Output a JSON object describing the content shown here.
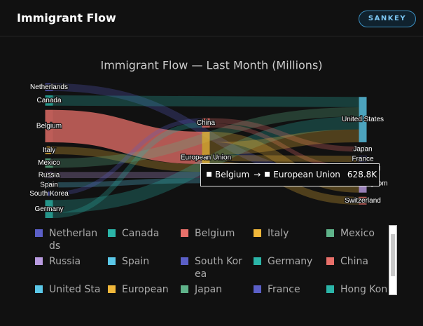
{
  "header": {
    "title": "Immigrant Flow",
    "badge": "SANKEY"
  },
  "chart_data": {
    "type": "sankey",
    "title": "Immigrant Flow — Last Month (Millions)",
    "nodes": [
      {
        "name": "Netherlands",
        "color": "#5b5fc7"
      },
      {
        "name": "Canada",
        "color": "#2bb5a8"
      },
      {
        "name": "Belgium",
        "color": "#e8706a"
      },
      {
        "name": "Italy",
        "color": "#f0b73a"
      },
      {
        "name": "Mexico",
        "color": "#5fb38a"
      },
      {
        "name": "Russia",
        "color": "#b99be0"
      },
      {
        "name": "Spain",
        "color": "#5bc8e8"
      },
      {
        "name": "South Korea",
        "color": "#5b5fc7"
      },
      {
        "name": "Germany",
        "color": "#2bb5a8"
      },
      {
        "name": "China",
        "color": "#e8706a"
      },
      {
        "name": "United States",
        "color": "#5bc8e8"
      },
      {
        "name": "European Union",
        "color": "#f0b73a"
      },
      {
        "name": "Japan",
        "color": "#5fb38a"
      },
      {
        "name": "France",
        "color": "#5b5fc7"
      },
      {
        "name": "Hong Kong",
        "color": "#2bb5a8"
      },
      {
        "name": "United Kingdom",
        "color": "#b99be0"
      },
      {
        "name": "Switzerland",
        "color": "#e8706a"
      }
    ],
    "links": [
      {
        "source": "Netherlands",
        "target": "United Kingdom",
        "value": 150000
      },
      {
        "source": "Canada",
        "target": "United States",
        "value": 200000
      },
      {
        "source": "Belgium",
        "target": "European Union",
        "value": 628800,
        "value_label": "628.8K"
      },
      {
        "source": "Italy",
        "target": "European Union",
        "value": 150000
      },
      {
        "source": "Mexico",
        "target": "United States",
        "value": 180000
      },
      {
        "source": "Russia",
        "target": "European Union",
        "value": 120000
      },
      {
        "source": "Spain",
        "target": "European Union",
        "value": 100000
      },
      {
        "source": "South Korea",
        "target": "China",
        "value": 80000
      },
      {
        "source": "Germany",
        "target": "United States",
        "value": 250000
      },
      {
        "source": "Germany",
        "target": "China",
        "value": 100000
      },
      {
        "source": "China",
        "target": "Japan",
        "value": 100000
      },
      {
        "source": "China",
        "target": "Hong Kong",
        "value": 80000
      },
      {
        "source": "European Union",
        "target": "United Kingdom",
        "value": 200000
      },
      {
        "source": "European Union",
        "target": "United States",
        "value": 250000
      },
      {
        "source": "European Union",
        "target": "France",
        "value": 120000
      },
      {
        "source": "European Union",
        "target": "Switzerland",
        "value": 150000
      }
    ],
    "tooltip": {
      "link": 2,
      "separator": "→"
    }
  }
}
